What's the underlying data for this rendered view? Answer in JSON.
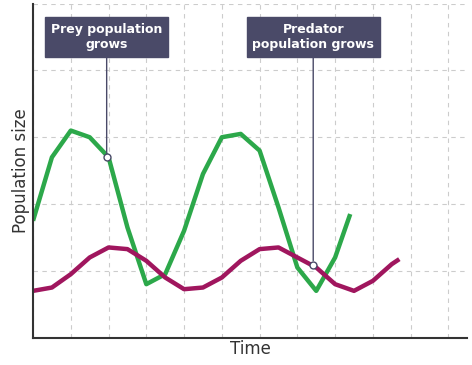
{
  "chart_data": {
    "type": "line",
    "x_label": "Time",
    "y_label": "Population size",
    "xlim": [
      0,
      11.5
    ],
    "xticks": [
      0,
      1,
      2,
      3,
      4,
      5,
      6,
      7,
      8,
      9,
      10,
      11
    ],
    "ylim": [
      0,
      10
    ],
    "yticks": [
      0,
      2,
      4,
      6,
      8,
      10
    ],
    "grid": true,
    "tick_labels": false,
    "series": [
      {
        "color": "#2ca84a",
        "x": [
          0,
          0.5,
          1,
          1.5,
          2,
          2.5,
          3,
          3.5,
          4,
          4.5,
          5,
          5.5,
          6,
          6.5,
          7,
          7.5,
          8,
          8.4
        ],
        "values": [
          3.5,
          5.4,
          6.2,
          6.0,
          5.4,
          3.3,
          1.6,
          1.9,
          3.2,
          4.9,
          6.0,
          6.1,
          5.6,
          3.9,
          2.1,
          1.4,
          2.4,
          3.7
        ]
      },
      {
        "color": "#a0165e",
        "x": [
          0,
          0.5,
          1,
          1.5,
          2,
          2.5,
          3,
          3.5,
          4,
          4.5,
          5,
          5.5,
          6,
          6.5,
          7,
          7.5,
          8,
          8.5,
          9,
          9.5,
          9.7
        ],
        "values": [
          1.4,
          1.5,
          1.9,
          2.4,
          2.7,
          2.65,
          2.3,
          1.8,
          1.45,
          1.5,
          1.8,
          2.3,
          2.65,
          2.7,
          2.4,
          2.1,
          1.6,
          1.4,
          1.7,
          2.2,
          2.35
        ]
      }
    ],
    "annotations": [
      {
        "text": "Prey population\ngrows",
        "x": 1.95,
        "y": 5.4
      },
      {
        "text": "Predator\npopulation grows",
        "x": 7.42,
        "y": 2.18
      }
    ]
  }
}
